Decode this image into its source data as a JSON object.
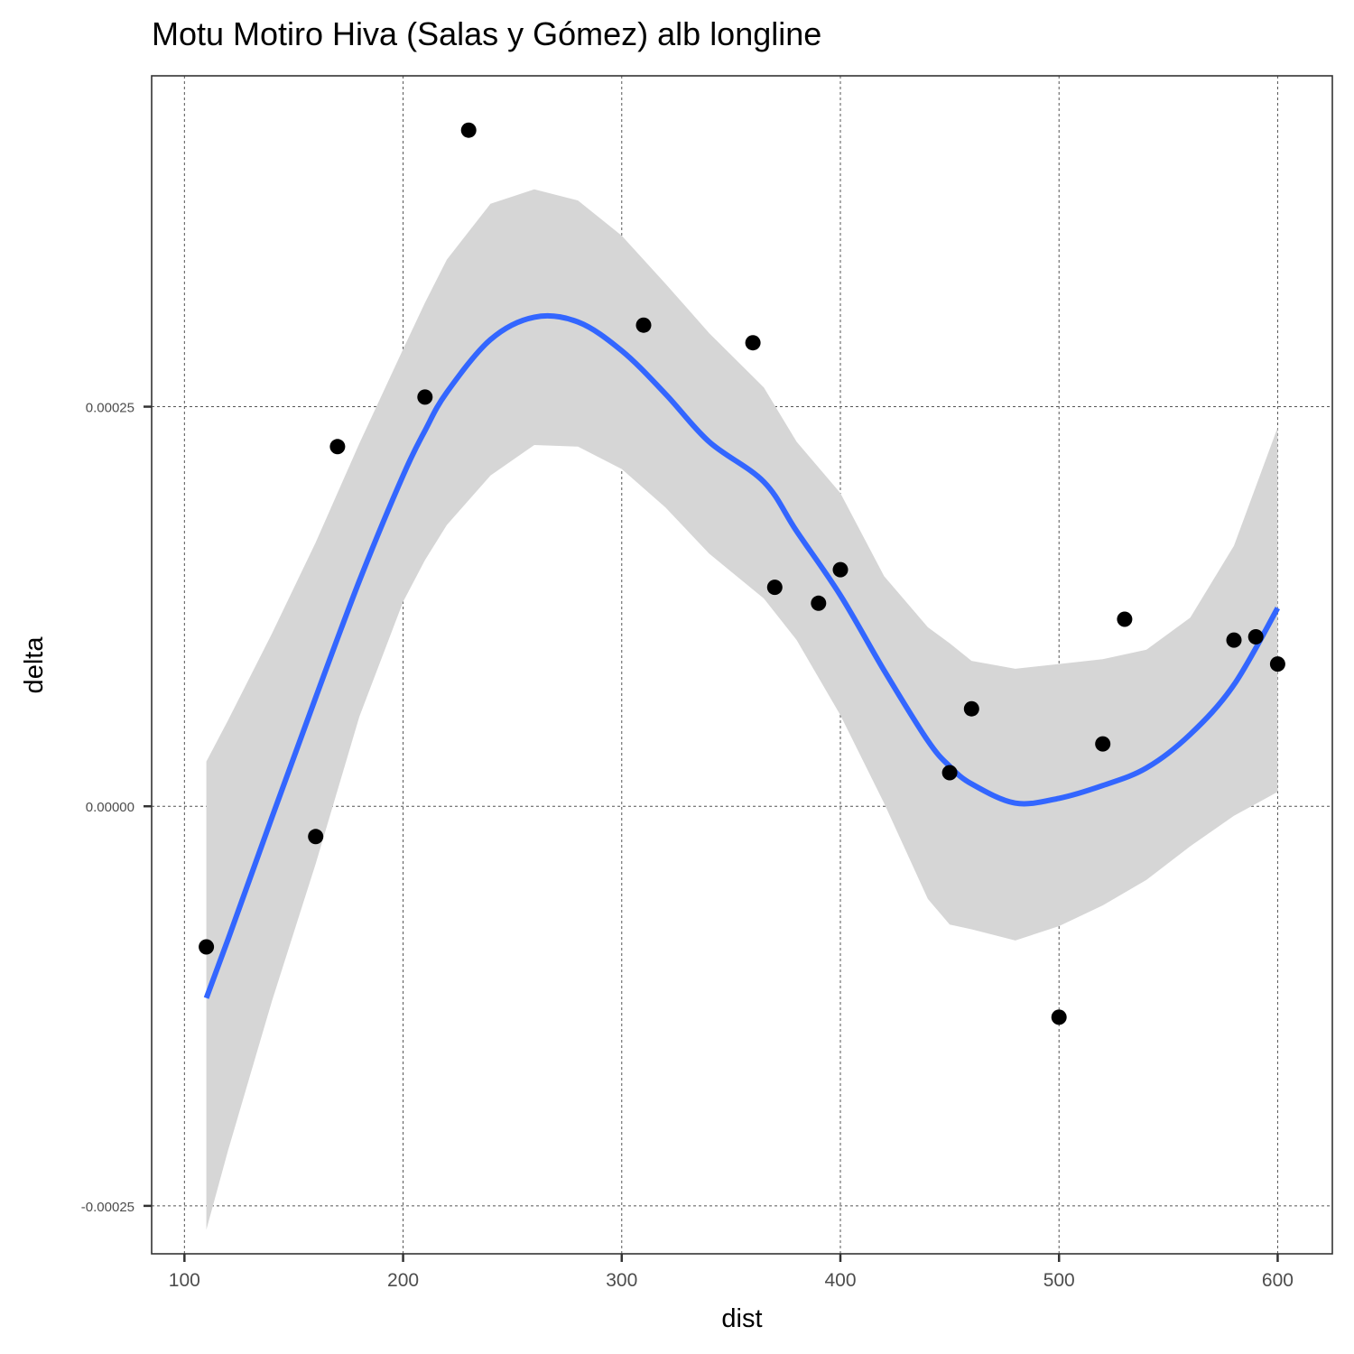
{
  "chart_data": {
    "type": "scatter",
    "title": "Motu Motiro Hiva (Salas y Gómez) alb longline",
    "xlabel": "dist",
    "ylabel": "delta",
    "xlim": [
      85,
      625
    ],
    "ylim": [
      -0.00028,
      0.000457
    ],
    "x_ticks": [
      100,
      200,
      300,
      400,
      500,
      600
    ],
    "x_tick_labels": [
      "100",
      "200",
      "300",
      "400",
      "500",
      "600"
    ],
    "y_ticks": [
      -0.00025,
      0,
      0.00025
    ],
    "y_tick_labels": [
      "-0.00025",
      "0.00000",
      "0.00025"
    ],
    "grid": true,
    "points": {
      "x": [
        110,
        160,
        170,
        210,
        230,
        310,
        360,
        370,
        390,
        400,
        450,
        460,
        500,
        520,
        530,
        580,
        590,
        600
      ],
      "y": [
        -8.8e-05,
        -1.9e-05,
        0.000225,
        0.000256,
        0.000423,
        0.000301,
        0.00029,
        0.000137,
        0.000127,
        0.000148,
        2.1e-05,
        6.1e-05,
        -0.000132,
        3.9e-05,
        0.000117,
        0.000104,
        0.000106,
        8.9e-05
      ],
      "color": "#000000"
    },
    "smooth": {
      "name": "",
      "color": "#3366FF",
      "x": [
        110,
        120,
        140,
        160,
        180,
        200,
        210,
        220,
        240,
        260,
        280,
        300,
        320,
        340,
        365,
        380,
        400,
        420,
        440,
        450,
        460,
        480,
        500,
        520,
        540,
        560,
        580,
        600
      ],
      "y": [
        -0.00012,
        -8.3e-05,
        -7e-06,
        6.8e-05,
        0.000141,
        0.000207,
        0.000235,
        0.000259,
        0.000292,
        0.000306,
        0.000303,
        0.000285,
        0.000258,
        0.000228,
        0.000203,
        0.000172,
        0.000132,
        8.5e-05,
        4.1e-05,
        2.5e-05,
        1.4e-05,
        2e-06,
        5e-06,
        1.3e-05,
        2.4e-05,
        4.5e-05,
        7.6e-05,
        0.000124
      ]
    },
    "ribbon": {
      "color": "#d6d6d6",
      "x": [
        110,
        120,
        140,
        160,
        180,
        200,
        210,
        220,
        240,
        260,
        280,
        300,
        320,
        340,
        365,
        380,
        400,
        420,
        440,
        450,
        460,
        480,
        500,
        520,
        540,
        560,
        580,
        600
      ],
      "upper": [
        2.8e-05,
        5.4e-05,
        0.000108,
        0.000165,
        0.000227,
        0.000286,
        0.000315,
        0.000342,
        0.000377,
        0.000386,
        0.000379,
        0.000357,
        0.000327,
        0.000296,
        0.000262,
        0.000228,
        0.000196,
        0.000144,
        0.000112,
        0.000102,
        9.1e-05,
        8.6e-05,
        8.9e-05,
        9.2e-05,
        9.8e-05,
        0.000118,
        0.000163,
        0.000237
      ],
      "lower": [
        -0.000265,
        -0.000215,
        -0.000122,
        -3.6e-05,
        5.6e-05,
        0.000128,
        0.000154,
        0.000176,
        0.000207,
        0.000226,
        0.000225,
        0.000211,
        0.000187,
        0.000158,
        0.00013,
        0.000104,
        5.7e-05,
        2e-06,
        -5.8e-05,
        -7.4e-05,
        -7.7e-05,
        -8.4e-05,
        -7.5e-05,
        -6.2e-05,
        -4.6e-05,
        -2.5e-05,
        -6e-06,
        9e-06
      ]
    }
  }
}
